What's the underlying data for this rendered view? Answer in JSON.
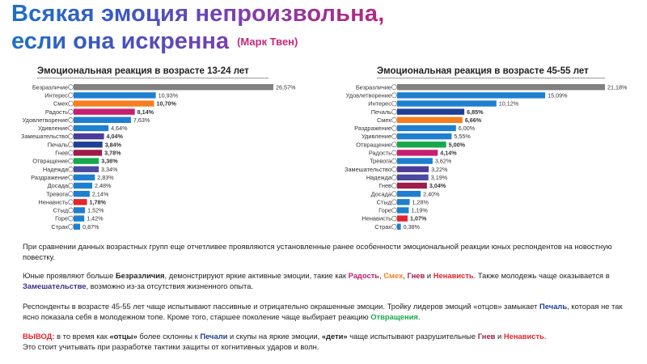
{
  "title": {
    "line1": "Всякая эмоция непроизвольна,",
    "line2": "если она искренна",
    "author": "(Марк Твен)"
  },
  "chart_data": [
    {
      "type": "bar",
      "orientation": "horizontal",
      "title": "Эмоциональная реакция в возрасте 13-24 лет",
      "categories": [
        "Безразличие",
        "Интерес",
        "Смех",
        "Радость",
        "Удовлетворение",
        "Удивление",
        "Замешательство",
        "Печаль",
        "Гнев",
        "Отвращение",
        "Надежда",
        "Раздражение",
        "Досада",
        "Тревога",
        "Ненависть",
        "Стыд",
        "Горе",
        "Страх"
      ],
      "values": [
        26.57,
        10.93,
        10.7,
        8.14,
        7.63,
        4.64,
        4.04,
        3.84,
        3.78,
        3.36,
        3.34,
        2.83,
        2.48,
        2.14,
        1.78,
        1.52,
        1.42,
        0.87
      ],
      "value_labels": [
        "26,57%",
        "10,93%",
        "10,70%",
        "8,14%",
        "7,63%",
        "4,64%",
        "4,04%",
        "3,84%",
        "3,78%",
        "3,36%",
        "3,34%",
        "2,83%",
        "2,48%",
        "2,14%",
        "1,78%",
        "1,52%",
        "1,42%",
        "0,87%"
      ],
      "colors": [
        "#808080",
        "#1f7fcf",
        "#f47f20",
        "#c71f6f",
        "#1f7fcf",
        "#1f7fcf",
        "#4b3c9a",
        "#1e3f96",
        "#9e1c4a",
        "#17a84b",
        "#4a4aa0",
        "#1f7fcf",
        "#1f7fcf",
        "#1f7fcf",
        "#e5242b",
        "#1f7fcf",
        "#1f7fcf",
        "#1f7fcf"
      ],
      "bold_values": [
        false,
        false,
        true,
        true,
        false,
        false,
        true,
        true,
        true,
        true,
        false,
        false,
        false,
        false,
        true,
        false,
        false,
        false
      ],
      "xlim": [
        0,
        26.57
      ]
    },
    {
      "type": "bar",
      "orientation": "horizontal",
      "title": "Эмоциональная реакция в возрасте 45-55 лет",
      "categories": [
        "Безразличие",
        "Удовлетворение",
        "Интерес",
        "Печаль",
        "Смех",
        "Раздражение",
        "Удивление",
        "Отвращение",
        "Радость",
        "Тревога",
        "Замешательство",
        "Надежда",
        "Гнев",
        "Досада",
        "Стыд",
        "Горе",
        "Ненависть",
        "Страх"
      ],
      "values": [
        21.18,
        15.09,
        10.12,
        6.85,
        6.66,
        6.0,
        5.55,
        5.0,
        4.14,
        3.62,
        3.22,
        3.19,
        3.04,
        2.4,
        1.28,
        1.19,
        1.07,
        0.38
      ],
      "value_labels": [
        "21,18%",
        "15,09%",
        "10,12%",
        "6,85%",
        "6,66%",
        "6,00%",
        "5,55%",
        "5,00%",
        "4,14%",
        "3,62%",
        "3,22%",
        "3,19%",
        "3,04%",
        "2,40%",
        "1,28%",
        "1,19%",
        "1,07%",
        "0,38%"
      ],
      "colors": [
        "#808080",
        "#1f7fcf",
        "#1f7fcf",
        "#1e3f96",
        "#f47f20",
        "#1f7fcf",
        "#1f7fcf",
        "#17a84b",
        "#c71f6f",
        "#1f7fcf",
        "#4b3c9a",
        "#4a4aa0",
        "#9e1c4a",
        "#1f7fcf",
        "#1f7fcf",
        "#1f7fcf",
        "#e5242b",
        "#1f7fcf"
      ],
      "bold_values": [
        false,
        false,
        false,
        true,
        true,
        false,
        false,
        true,
        true,
        false,
        false,
        false,
        true,
        false,
        false,
        false,
        true,
        false
      ],
      "xlim": [
        0,
        21.18
      ]
    }
  ],
  "text": {
    "p1": "При сравнении данных возрастных групп еще отчетливее проявляются установленные ранее особенности эмоциональной реакции юных респондентов на новостную повестку.",
    "p2_a": "Юные проявляют больше ",
    "p2_b": "Безразличия",
    "p2_c": ", демонстрируют яркие активные эмоции, такие как ",
    "p2_d": "Радость",
    "p2_e": ", ",
    "p2_f": "Смех",
    "p2_g": ", ",
    "p2_h": "Гнев",
    "p2_i": " и ",
    "p2_j": "Ненависть",
    "p2_k": ". Также молодежь чаще оказывается в ",
    "p2_l": "Замешательстве",
    "p2_m": ", возможно из-за отсутствия жизненного опыта.",
    "p3_a": "Респонденты в возрасте 45-55 лет чаще испытывают пассивные и отрицательно окрашенные эмоции. Тройку лидеров эмоций «отцов» замыкает ",
    "p3_b": "Печаль",
    "p3_c": ", которая не так ясно показала себя в молодежном топе. Кроме того, старшее поколение чаще выбирает реакцию ",
    "p3_d": "Отвращения",
    "p3_e": ".",
    "p4_a": "ВЫВОД:",
    "p4_b": " в то время как ",
    "p4_c": "«отцы»",
    "p4_d": " более склонны к ",
    "p4_e": "Печали",
    "p4_f": " и скупы на яркие эмоции, ",
    "p4_g": "«дети»",
    "p4_h": " чаще испытывают разрушительные ",
    "p4_i": "Гнев",
    "p4_j": " и ",
    "p4_k": "Ненависть",
    "p4_l": ".",
    "p4_m": "Это стоит учитывать при разработке тактики защиты от когнитивных ударов и волн."
  },
  "colors": {
    "red": "#e5242b",
    "orange": "#f47f20",
    "blue": "#1f6fc8",
    "purple_dark": "#3b2e87",
    "green": "#17a84b",
    "magenta": "#c7287a"
  }
}
